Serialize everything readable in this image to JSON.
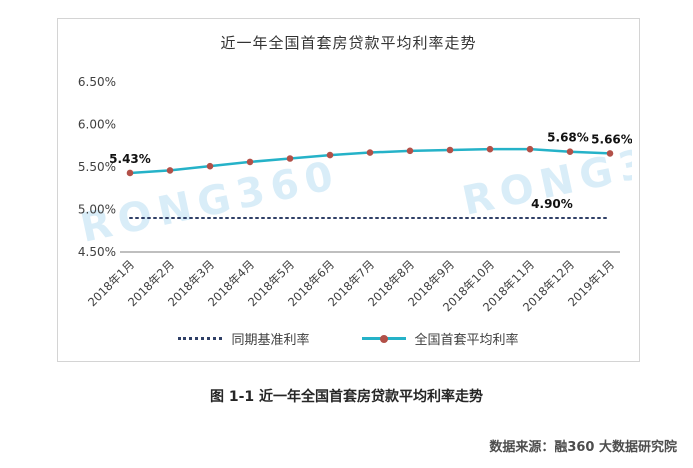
{
  "chart_data": {
    "type": "line",
    "title": "近一年全国首套房贷款平均利率走势",
    "categories": [
      "2018年1月",
      "2018年2月",
      "2018年3月",
      "2018年4月",
      "2018年5月",
      "2018年6月",
      "2018年7月",
      "2018年8月",
      "2018年9月",
      "2018年10月",
      "2018年11月",
      "2018年12月",
      "2019年1月"
    ],
    "series": [
      {
        "name": "同期基准利率",
        "values": [
          4.9,
          4.9,
          4.9,
          4.9,
          4.9,
          4.9,
          4.9,
          4.9,
          4.9,
          4.9,
          4.9,
          4.9,
          4.9
        ],
        "color": "#2f3f66",
        "dash": "2 4"
      },
      {
        "name": "全国首套平均利率",
        "values": [
          5.43,
          5.46,
          5.51,
          5.56,
          5.6,
          5.64,
          5.67,
          5.69,
          5.7,
          5.71,
          5.71,
          5.68,
          5.66
        ],
        "color": "#25b2c8",
        "marker_color": "#b25048"
      }
    ],
    "ylim": [
      4.5,
      6.5
    ],
    "yticks": [
      "6.50%",
      "6.00%",
      "5.50%",
      "5.00%",
      "4.50%"
    ],
    "grid": false,
    "legend_position": "bottom",
    "annotations": [
      {
        "text": "5.43%",
        "series": 1,
        "index": 0,
        "dx": 0
      },
      {
        "text": "4.90%",
        "series": 0,
        "index": 10,
        "dx": 22
      },
      {
        "text": "5.68%",
        "series": 1,
        "index": 11,
        "dx": -2
      },
      {
        "text": "5.66%",
        "series": 1,
        "index": 12,
        "dx": 2
      }
    ],
    "watermark": "RONG360"
  },
  "caption": "图 1-1  近一年全国首套房贷款平均利率走势",
  "source": "数据来源：融360 大数据研究院"
}
